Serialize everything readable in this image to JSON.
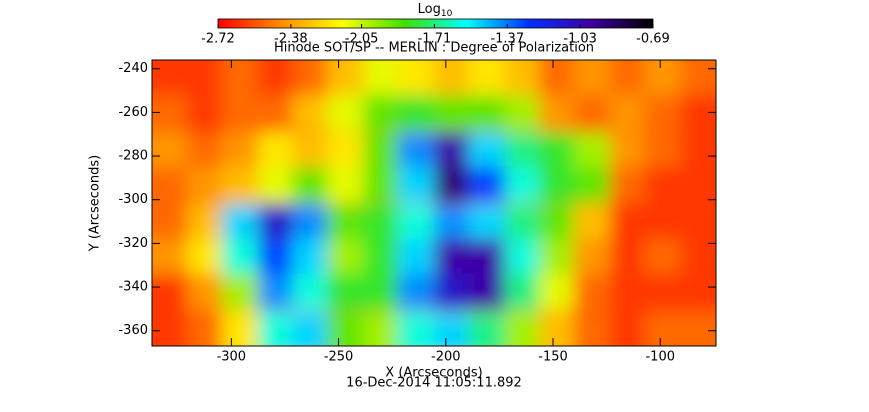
{
  "chart_data": {
    "type": "heatmap",
    "title": "Hinode SOT/SP -- MERLIN : Degree of Polarization",
    "xlabel": "X (Arcseconds)",
    "ylabel": "Y (Arcseconds)",
    "footer": "16-Dec-2014 11:05:11.892",
    "colorbar_label": {
      "text": "Log",
      "subscript": "10"
    },
    "colormap": [
      "#ff0000",
      "#ff8a00",
      "#ffff00",
      "#40e000",
      "#00ffff",
      "#0030ff",
      "#4000a0",
      "#000000"
    ],
    "clim": [
      -2.72,
      -0.69
    ],
    "cticks": [
      -2.72,
      -2.38,
      -2.05,
      -1.71,
      -1.37,
      -1.03,
      -0.69
    ],
    "xlim": [
      -337,
      -74
    ],
    "ylim": [
      -367,
      -236
    ],
    "xticks": [
      -300,
      -250,
      -200,
      -150,
      -100
    ],
    "yticks": [
      -360,
      -340,
      -320,
      -300,
      -280,
      -260,
      -240
    ],
    "x": [
      -329,
      -312,
      -296,
      -279,
      -263,
      -247,
      -230,
      -214,
      -197,
      -181,
      -164,
      -148,
      -132,
      -115,
      -99,
      -82
    ],
    "y": [
      -244,
      -260,
      -277,
      -293,
      -310,
      -326,
      -342,
      -359
    ],
    "z": [
      [
        -2.6,
        -2.6,
        -2.5,
        -2.6,
        -2.5,
        -2.3,
        -2.1,
        -2.2,
        -2.3,
        -2.2,
        -2.3,
        -2.5,
        -2.4,
        -2.5,
        -2.4,
        -2.5
      ],
      [
        -2.5,
        -2.6,
        -2.5,
        -2.5,
        -2.3,
        -2.1,
        -1.9,
        -1.8,
        -1.9,
        -1.9,
        -2.0,
        -2.4,
        -2.5,
        -2.4,
        -2.5,
        -2.6
      ],
      [
        -2.4,
        -2.5,
        -2.4,
        -2.2,
        -2.3,
        -2.2,
        -1.9,
        -1.4,
        -1.0,
        -1.5,
        -1.7,
        -1.8,
        -2.0,
        -2.4,
        -2.5,
        -2.6
      ],
      [
        -2.5,
        -2.4,
        -2.3,
        -2.1,
        -1.9,
        -2.1,
        -1.9,
        -1.5,
        -0.9,
        -1.3,
        -1.6,
        -1.8,
        -1.9,
        -2.5,
        -2.6,
        -2.6
      ],
      [
        -2.5,
        -2.3,
        -1.5,
        -1.1,
        -1.4,
        -1.9,
        -1.8,
        -1.6,
        -1.4,
        -1.5,
        -1.7,
        -1.9,
        -2.3,
        -2.6,
        -2.6,
        -2.6
      ],
      [
        -2.4,
        -2.2,
        -1.6,
        -1.3,
        -1.5,
        -2.0,
        -1.8,
        -1.5,
        -1.0,
        -1.0,
        -1.6,
        -2.0,
        -2.4,
        -2.6,
        -2.5,
        -2.6
      ],
      [
        -2.6,
        -2.4,
        -2.0,
        -1.4,
        -1.6,
        -1.8,
        -1.8,
        -1.4,
        -1.1,
        -1.0,
        -1.7,
        -2.1,
        -2.5,
        -2.6,
        -2.6,
        -2.6
      ],
      [
        -2.6,
        -2.5,
        -2.2,
        -1.6,
        -1.5,
        -1.9,
        -2.0,
        -1.6,
        -1.5,
        -1.7,
        -2.0,
        -2.3,
        -2.5,
        -2.6,
        -2.5,
        -2.5
      ]
    ]
  }
}
